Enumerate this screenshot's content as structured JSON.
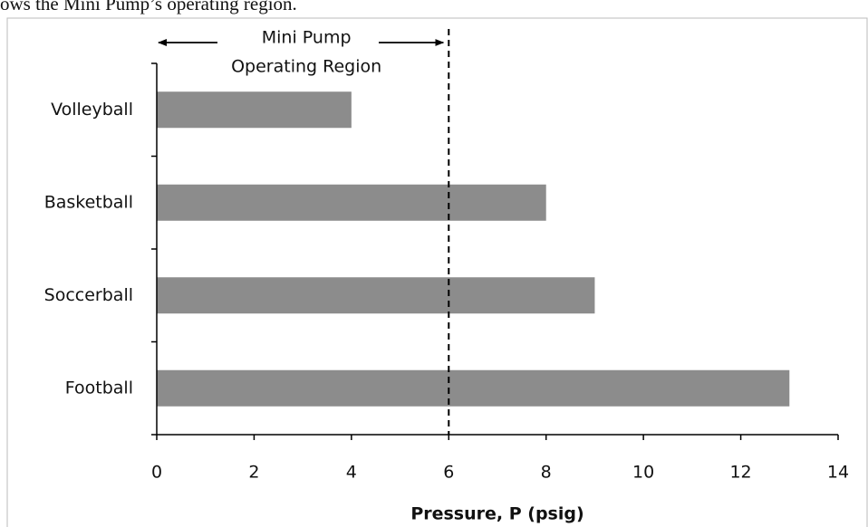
{
  "caption": "ows the Mini Pump’s operating region.",
  "chart_data": {
    "type": "barh",
    "categories": [
      "Volleyball",
      "Basketball",
      "Soccerball",
      "Football"
    ],
    "values": [
      4,
      8,
      9,
      13
    ],
    "color": "#8c8c8c",
    "xlabel": "Pressure, P (psig)",
    "xlim": [
      0,
      14
    ],
    "xticks": [
      0,
      2,
      4,
      6,
      8,
      10,
      12,
      14
    ],
    "reference_line": 6,
    "annotation": [
      "Mini Pump",
      "Operating Region"
    ]
  }
}
